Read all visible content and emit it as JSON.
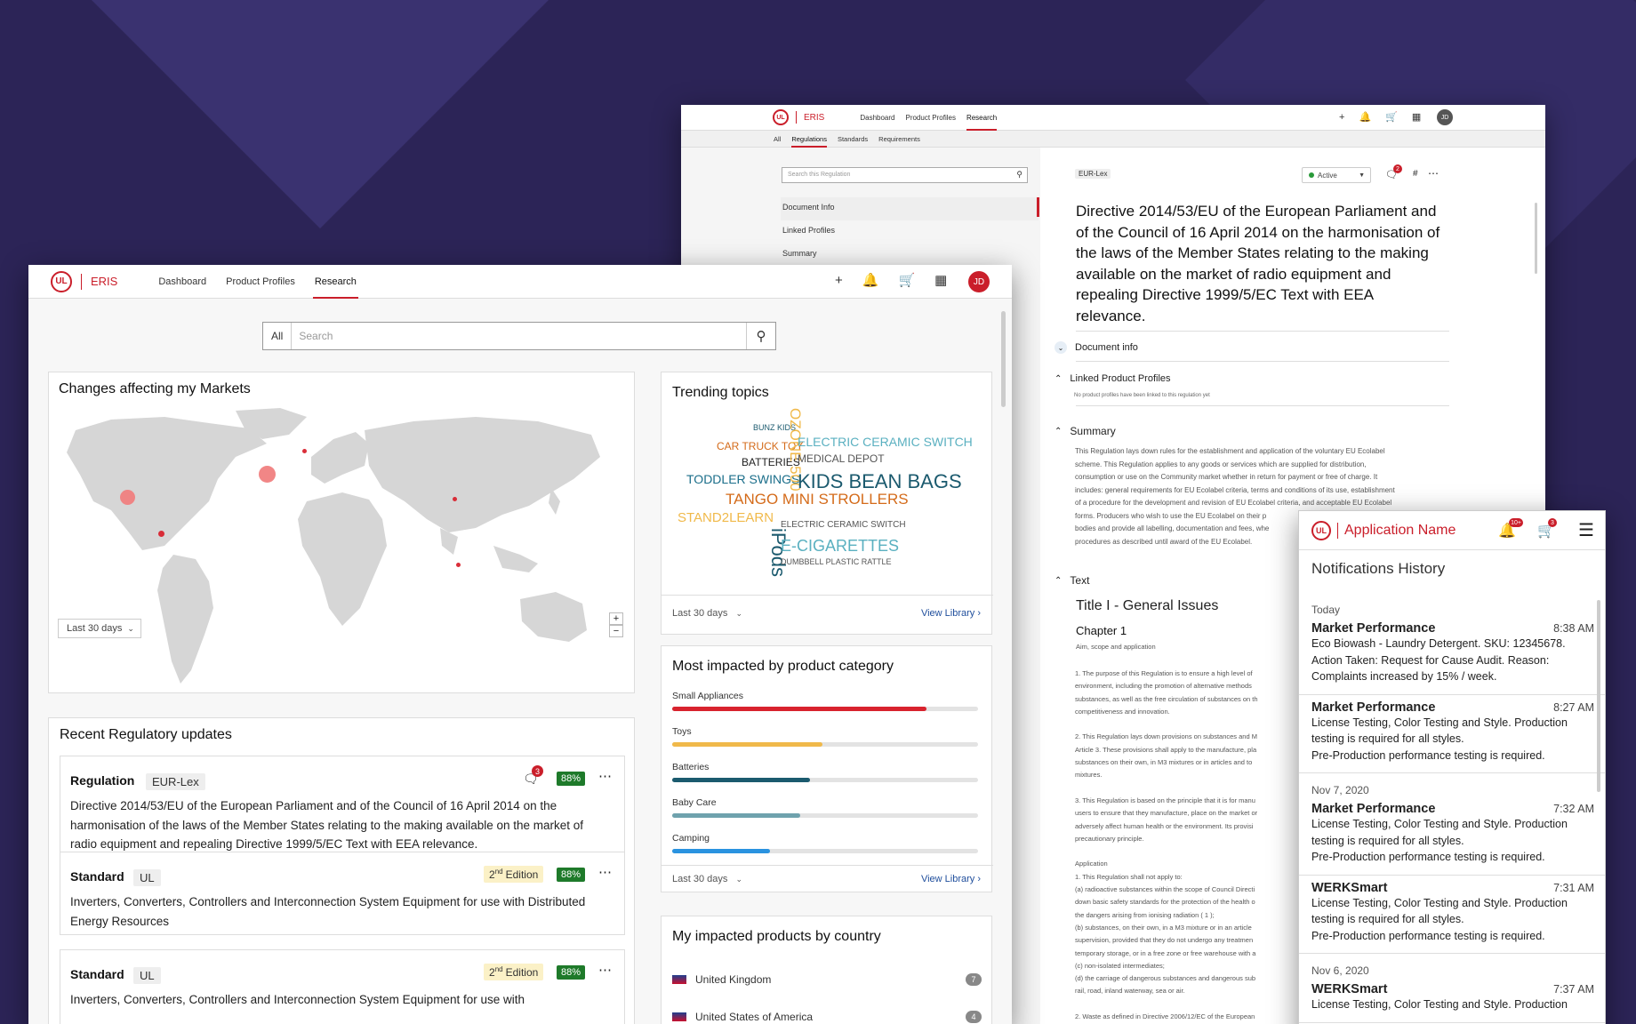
{
  "app": {
    "name": "ERIS",
    "logo": "UL"
  },
  "nav": {
    "items": [
      "Dashboard",
      "Product Profiles",
      "Research"
    ],
    "active": "Research",
    "avatar": "JD"
  },
  "search": {
    "scope": "All",
    "placeholder": "Search"
  },
  "map_card": {
    "title": "Changes affecting my Markets",
    "range": "Last 30 days",
    "zoom_in": "+",
    "zoom_out": "−"
  },
  "trending": {
    "title": "Trending topics",
    "range": "Last 30 days",
    "link": "View Library",
    "words": [
      "BUNZ KIDS",
      "CAR TRUCK TOY",
      "BATTERIES",
      "TODDLER SWINGS",
      "TANGO MINI STROLLERS",
      "STAND2LEARN",
      "OZONE 500",
      "iPods",
      "ELECTRIC CERAMIC SWITCH",
      "MEDICAL DEPOT",
      "KIDS BEAN BAGS",
      "ELECTRIC CERAMIC SWITCH",
      "E-CIGARETTES",
      "DUMBBELL PLASTIC RATTLE"
    ]
  },
  "impacted": {
    "title": "Most impacted by product category",
    "range": "Last 30 days",
    "link": "View Library",
    "categories": [
      {
        "label": "Small Appliances",
        "value": 0.83,
        "color": "#d8232e"
      },
      {
        "label": "Toys",
        "value": 0.49,
        "color": "#f0b94a"
      },
      {
        "label": "Batteries",
        "value": 0.45,
        "color": "#1b5a6e"
      },
      {
        "label": "Baby Care",
        "value": 0.42,
        "color": "#6fa2ad"
      },
      {
        "label": "Camping",
        "value": 0.32,
        "color": "#2a93e0"
      }
    ]
  },
  "countries": {
    "title": "My impacted products by country",
    "items": [
      {
        "name": "United Kingdom",
        "count": "7"
      },
      {
        "name": "United States of America",
        "count": "4"
      }
    ]
  },
  "recent": {
    "title": "Recent Regulatory updates",
    "items": [
      {
        "type": "Regulation",
        "source": "EUR-Lex",
        "comments": "3",
        "score": "88%",
        "text": "Directive 2014/53/EU of the European Parliament and of the Council of 16 April 2014 on the harmonisation of the laws of the Member States relating to the making available on the market of radio equipment and repealing Directive 1999/5/EC Text with EEA relevance."
      },
      {
        "type": "Standard",
        "source": "UL",
        "edition": "2",
        "edition_sup": "nd",
        "edition_word": "Edition",
        "score": "88%",
        "text": "Inverters, Converters, Controllers and Interconnection System Equipment for use with Distributed Energy Resources"
      },
      {
        "type": "Standard",
        "source": "UL",
        "edition": "2",
        "edition_sup": "nd",
        "edition_word": "Edition",
        "score": "88%",
        "text": "Inverters, Converters, Controllers and Interconnection System Equipment for use with"
      }
    ]
  },
  "reg_window": {
    "tabs": [
      "All",
      "Regulations",
      "Standards",
      "Requirements"
    ],
    "active_tab": "Regulations",
    "search_placeholder": "Search this Regulation",
    "side_items": [
      "Document Info",
      "Linked Profiles",
      "Summary"
    ],
    "source": "EUR-Lex",
    "status": "Active",
    "comment_count": "2",
    "heading": "Directive 2014/53/EU of the European Parliament and of the Council of 16 April 2014 on the harmonisation of the laws of the Member States relating to the making available on the market of radio equipment and repealing Directive 1999/5/EC Text with EEA relevance.",
    "sections": {
      "doc_info": "Document info",
      "linked": "Linked Product Profiles",
      "linked_note": "No product profiles have been linked to this regulation yet",
      "summary": "Summary",
      "text": "Text"
    },
    "summary_lines": [
      "This Regulation lays down rules for the establishment and application of the voluntary EU Ecolabel",
      "scheme. This Regulation applies to any goods or services which are supplied for distribution,",
      "consumption or use on the Community market whether in return for payment or free of charge. It",
      "includes: general requirements for EU Ecolabel criteria, terms and conditions of its use, establishment",
      "of a procedure for the development and revision of EU Ecolabel criteria, and acceptable EU Ecolabel",
      "forms. Producers who wish to use the EU Ecolabel on their p",
      "bodies and provide all labelling, documentation and fees, whe",
      "procedures as described until award of the EU Ecolabel."
    ],
    "title_i": "Title I - General Issues",
    "chapter": "Chapter 1",
    "chapter_sub": "Aim, scope and application",
    "body_lines": [
      "1.  The purpose of this Regulation is to ensure a high level of",
      "environment, including the promotion of alternative methods",
      "substances, as well as the free circulation of substances on th",
      "competitiveness and innovation.",
      "",
      "2.  This Regulation lays down provisions on substances and M",
      "Article 3. These provisions shall apply to the manufacture, pla",
      "substances on their own, in M3   mixtures or in articles and to",
      "mixtures.",
      "",
      "3.  This Regulation is based on the principle that it is for manu",
      "users to ensure that they manufacture, place on the market or",
      "adversely affect human health or the environment. Its provisi",
      "precautionary principle.",
      "",
      "Application",
      "1.  This Regulation shall not apply to:",
      "(a) radioactive substances within the scope of Council Directi",
      "down basic safety standards for the protection of the health o",
      "the dangers arising from ionising radiation ( 1 );",
      "(b) substances, on their own, in a M3   mixture or in an article",
      "supervision, provided that they do not undergo any treatmen",
      "temporary storage, or in a free zone or free warehouse with a",
      "(c) non-isolated intermediates;",
      "(d) the carriage of dangerous substances and dangerous sub",
      "rail, road, inland waterway, sea or air.",
      "",
      "2.  Waste as defined in Directive 2006/12/EC of the European"
    ]
  },
  "mobile": {
    "app_name": "Application Name",
    "bell_badge": "10+",
    "cart_badge": "3",
    "title": "Notifications History",
    "groups": [
      {
        "date": "Today",
        "items": [
          {
            "title": "Market Performance",
            "time": "8:38 AM",
            "lines": [
              "Eco Biowash - Laundry Detergent. SKU: 12345678.",
              "Action Taken: Request for Cause Audit. Reason:",
              "Complaints increased by 15% / week."
            ]
          },
          {
            "title": "Market Performance",
            "time": "8:27 AM",
            "lines": [
              "License Testing, Color Testing and Style. Production",
              "testing is required for all styles.",
              "Pre-Production performance testing is required."
            ]
          }
        ]
      },
      {
        "date": "Nov 7, 2020",
        "items": [
          {
            "title": "Market Performance",
            "time": "7:32 AM",
            "lines": [
              "License Testing, Color Testing and Style. Production",
              "testing is required for all styles.",
              "Pre-Production performance testing is required."
            ]
          },
          {
            "title": "WERKSmart",
            "time": "7:31 AM",
            "lines": [
              "License Testing, Color Testing and Style. Production",
              "testing is required for all styles.",
              "Pre-Production performance testing is required."
            ]
          }
        ]
      },
      {
        "date": "Nov 6, 2020",
        "items": [
          {
            "title": "WERKSmart",
            "time": "7:37 AM",
            "lines": [
              "License Testing, Color Testing and Style. Production"
            ]
          }
        ]
      }
    ]
  }
}
